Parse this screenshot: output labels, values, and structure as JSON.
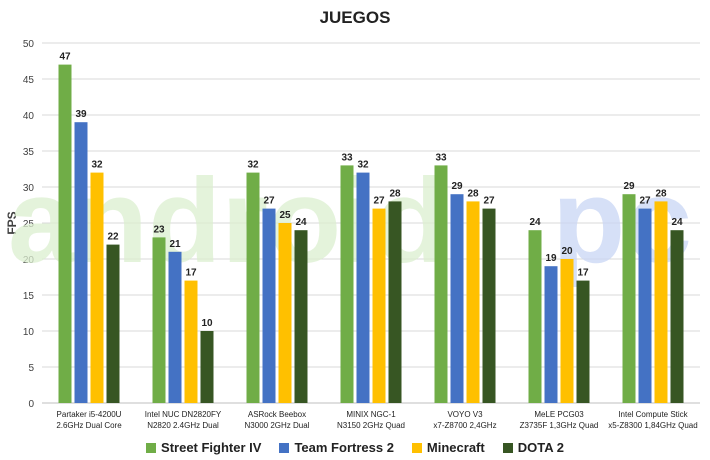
{
  "chart_data": {
    "type": "bar",
    "title": "JUEGOS",
    "xlabel": "",
    "ylabel": "FPS",
    "ylim": [
      0,
      50
    ],
    "yticks": [
      0,
      5,
      10,
      15,
      20,
      25,
      30,
      35,
      40,
      45,
      50
    ],
    "grid": true,
    "legend_position": "bottom",
    "categories": [
      [
        "Partaker i5-4200U",
        "2.6GHz Dual Core"
      ],
      [
        "Intel NUC DN2820FY",
        "N2820 2.4GHz Dual"
      ],
      [
        "ASRock Beebox",
        "N3000 2GHz Dual"
      ],
      [
        "MINIX NGC-1",
        "N3150 2GHz Quad"
      ],
      [
        "VOYO V3",
        "x7-Z8700 2,4GHz"
      ],
      [
        "MeLE PCG03",
        "Z3735F 1,3GHz Quad"
      ],
      [
        "Intel Compute Stick",
        "x5-Z8300 1,84GHz Quad"
      ]
    ],
    "series": [
      {
        "name": "Street Fighter IV",
        "color": "#70ad47",
        "values": [
          47,
          23,
          32,
          33,
          33,
          24,
          29
        ]
      },
      {
        "name": "Team Fortress 2",
        "color": "#4472c4",
        "values": [
          39,
          21,
          27,
          32,
          29,
          19,
          27
        ]
      },
      {
        "name": "Minecraft",
        "color": "#ffc000",
        "values": [
          32,
          17,
          25,
          27,
          28,
          20,
          28
        ]
      },
      {
        "name": "DOTA 2",
        "color": "#375623",
        "values": [
          22,
          10,
          24,
          28,
          27,
          17,
          24
        ]
      }
    ]
  },
  "watermark": {
    "text_main": "android",
    "text_accent": "pc",
    "color_main": "#dcefd0",
    "color_accent": "#c9d6f5"
  }
}
